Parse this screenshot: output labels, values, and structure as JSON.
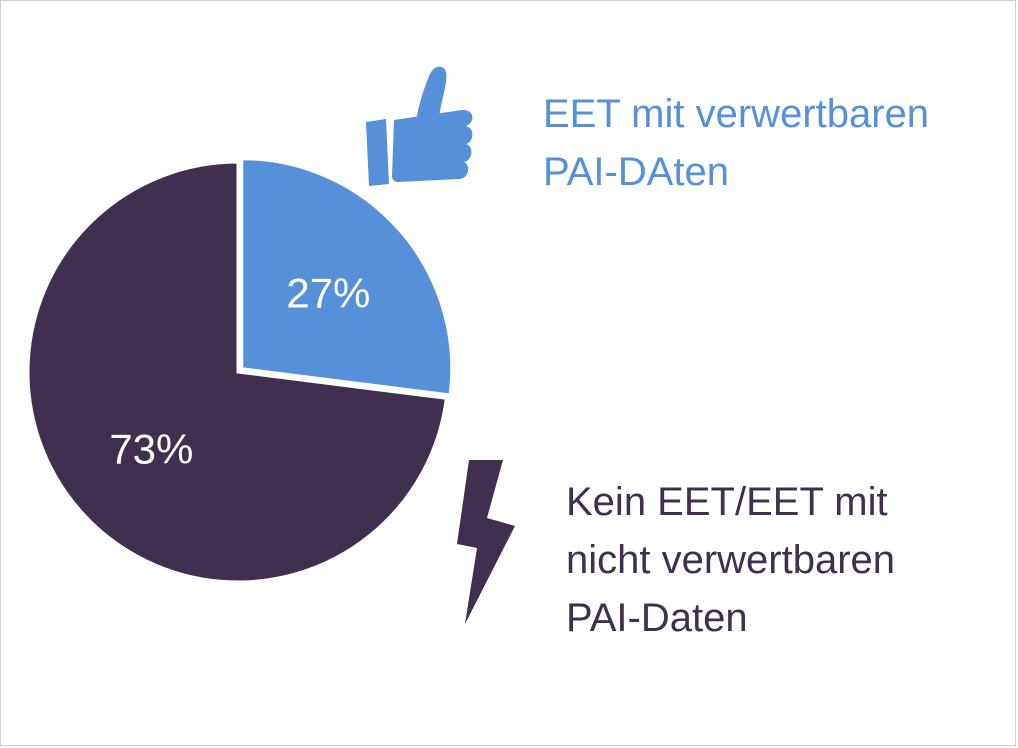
{
  "chart_data": {
    "type": "pie",
    "slices": [
      {
        "label_lines": [
          "EET mit verwertbaren",
          "PAI-DAten"
        ],
        "value": 27,
        "value_label": "27%",
        "color": "#5590d9",
        "icon": "thumbs-up-icon"
      },
      {
        "label_lines": [
          "Kein EET/EET mit",
          "nicht verwertbaren",
          "PAI-Daten"
        ],
        "value": 73,
        "value_label": "73%",
        "color": "#3f3050",
        "icon": "lightning-bolt-icon"
      }
    ],
    "start_angle": "12 o'clock",
    "direction": "clockwise",
    "exploded_slice": 0,
    "legend": "labels beside slices"
  }
}
